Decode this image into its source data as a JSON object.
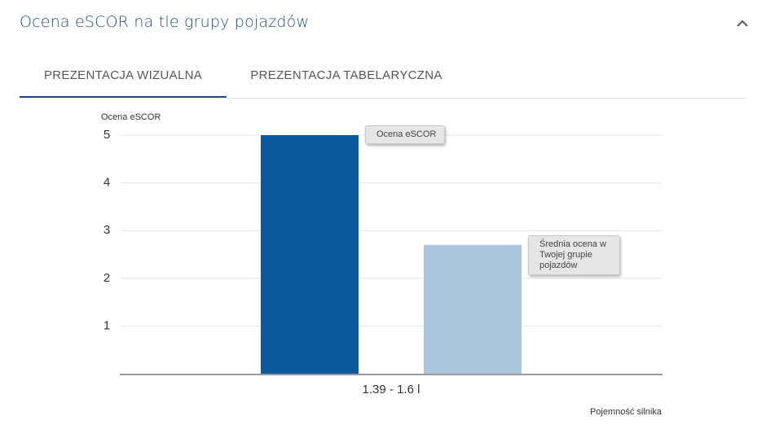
{
  "header": {
    "title": "Ocena eSCOR na tle grupy pojazdów"
  },
  "tabs": [
    "PREZENTACJA WIZUALNA",
    "PREZENTACJA TABELARYCZNA"
  ],
  "chart_data": {
    "type": "bar",
    "y_label": "Ocena eSCOR",
    "x_label": "Pojemność silnika",
    "categories": [
      "1.39 - 1.6 l"
    ],
    "series": [
      {
        "name": "Ocena eSCOR",
        "color": "#0b5a9c",
        "values": [
          5
        ]
      },
      {
        "name": "Średnia ocena w Twojej grupie pojazdów",
        "color": "#a9c6de",
        "values": [
          2.7
        ]
      }
    ],
    "ylim": [
      0,
      5
    ],
    "yticks": [
      1,
      2,
      3,
      4,
      5
    ],
    "grid": true
  }
}
